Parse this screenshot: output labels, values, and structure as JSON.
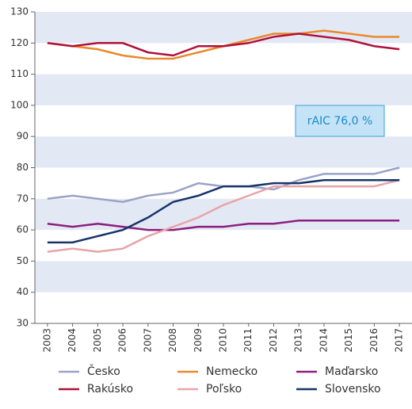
{
  "chart_data": {
    "type": "line",
    "x": [
      "2003",
      "2004",
      "2005",
      "2006",
      "2007",
      "2008",
      "2009",
      "2010",
      "2011",
      "2012",
      "2013",
      "2014",
      "2015",
      "2016",
      "2017"
    ],
    "series": [
      {
        "name": "Česko",
        "color": "#9aa3c8",
        "values": [
          70,
          71,
          70,
          69,
          71,
          72,
          75,
          74,
          74,
          73,
          76,
          78,
          78,
          78,
          80
        ]
      },
      {
        "name": "Nemecko",
        "color": "#e8892b",
        "values": [
          120,
          119,
          118,
          116,
          115,
          115,
          117,
          119,
          121,
          123,
          123,
          124,
          123,
          122,
          122
        ]
      },
      {
        "name": "Maďarsko",
        "color": "#8b1f7e",
        "values": [
          62,
          61,
          62,
          61,
          60,
          60,
          61,
          61,
          62,
          62,
          63,
          63,
          63,
          63,
          63
        ]
      },
      {
        "name": "Rakúsko",
        "color": "#b0103a",
        "values": [
          120,
          119,
          120,
          120,
          117,
          116,
          119,
          119,
          120,
          122,
          123,
          122,
          121,
          119,
          118
        ]
      },
      {
        "name": "Poľsko",
        "color": "#e8a3a8",
        "values": [
          53,
          54,
          53,
          54,
          58,
          61,
          64,
          68,
          71,
          74,
          74,
          74,
          74,
          74,
          76
        ]
      },
      {
        "name": "Slovensko",
        "color": "#17346b",
        "values": [
          56,
          56,
          58,
          60,
          64,
          69,
          71,
          74,
          74,
          75,
          75,
          76,
          76,
          76,
          76
        ]
      }
    ],
    "ylim": [
      30,
      130
    ],
    "yticks": [
      30,
      40,
      50,
      60,
      70,
      80,
      90,
      100,
      110,
      120,
      130
    ],
    "band_color": "#e3e9f4",
    "annotation": "rAIC 76,0 %"
  }
}
